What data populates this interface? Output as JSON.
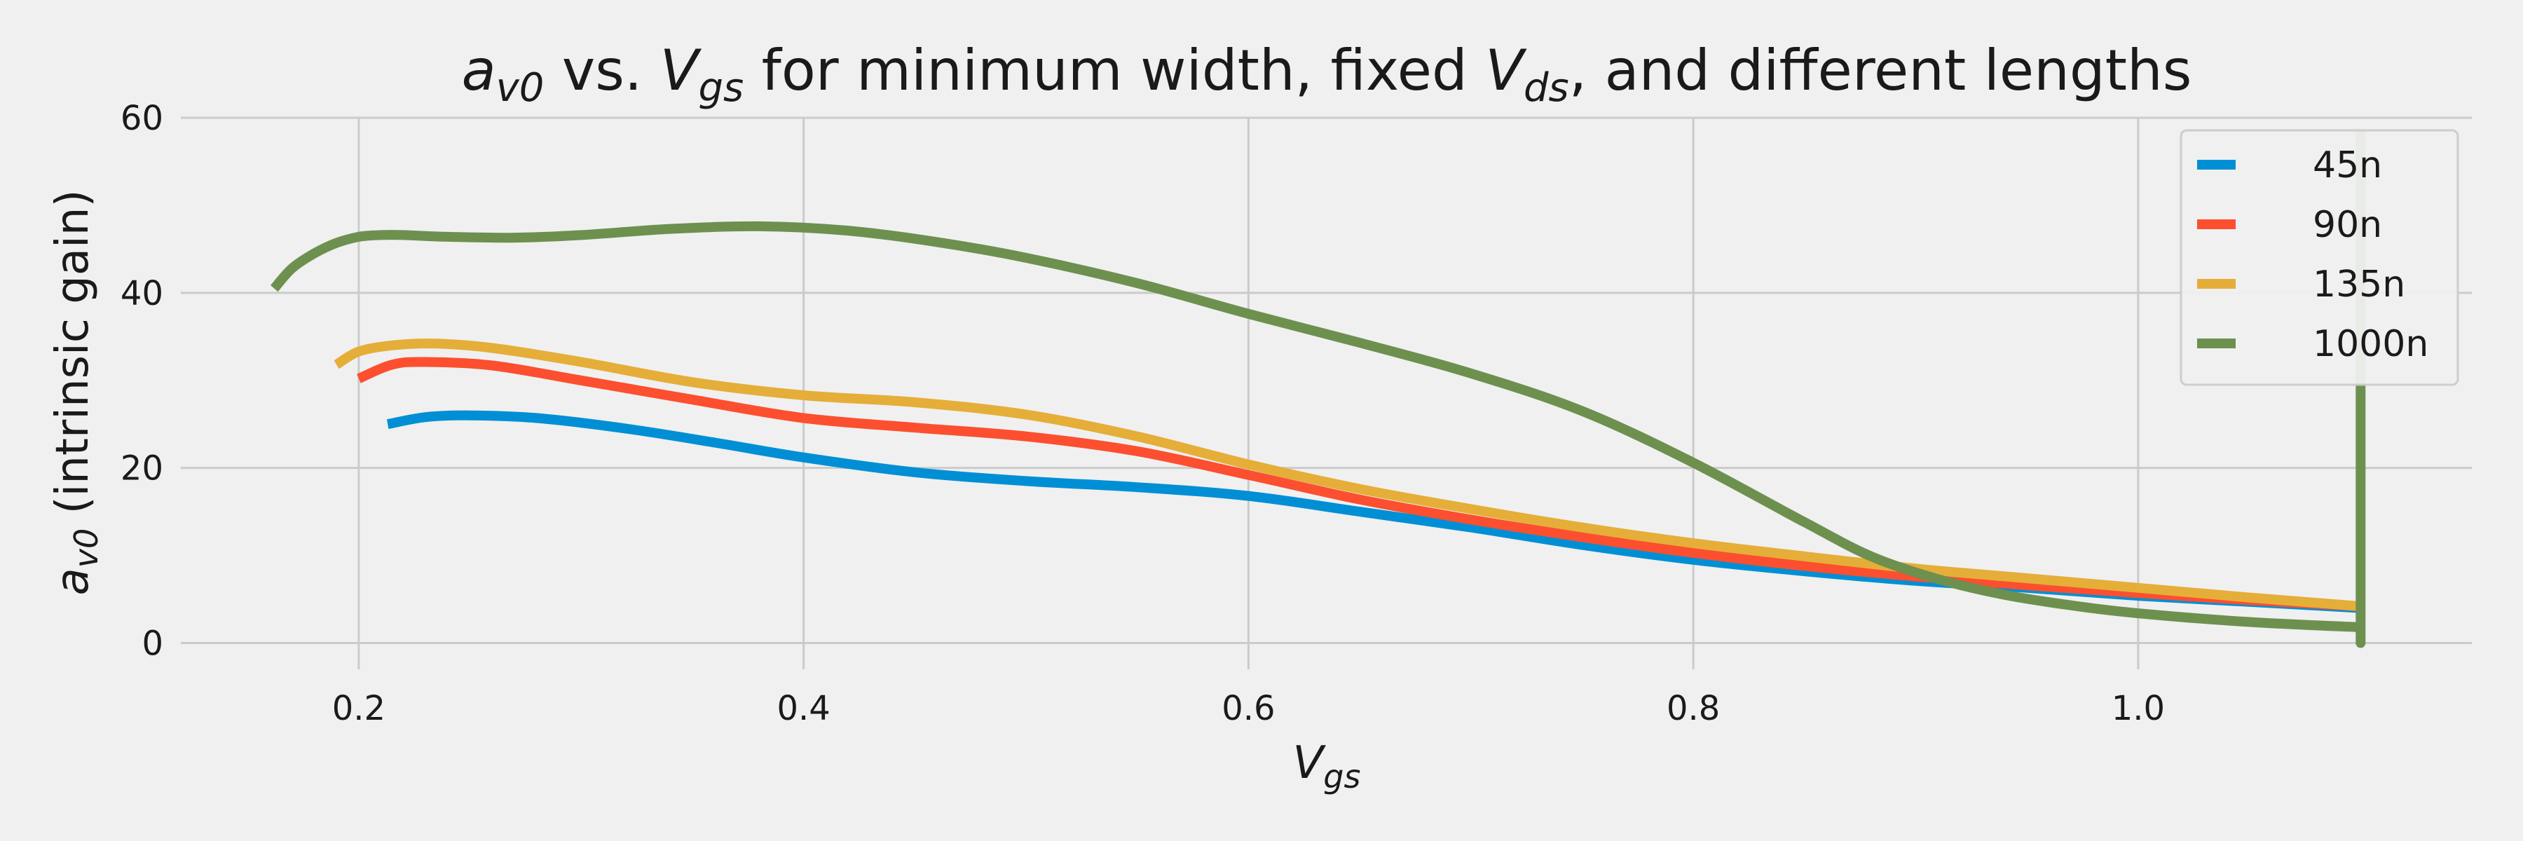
{
  "chart_data": {
    "type": "line",
    "title": {
      "main": "a",
      "main_sub": "v0",
      "mid": " vs. ",
      "var": "V",
      "var_sub": "gs",
      "rest": " for minimum width, fixed ",
      "var2": "V",
      "var2_sub": "ds",
      "tail": ", and different lengths"
    },
    "xlabel": {
      "base": "V",
      "sub": "gs"
    },
    "ylabel": {
      "base": "a",
      "sub": "v0",
      "rest": " (intrinsic gain)"
    },
    "xlim": [
      0.12,
      1.15
    ],
    "ylim": [
      -3,
      60
    ],
    "xticks": [
      0.2,
      0.4,
      0.6,
      0.8,
      1.0
    ],
    "xtick_labels": [
      "0.2",
      "0.4",
      "0.6",
      "0.8",
      "1.0"
    ],
    "yticks": [
      0,
      20,
      40,
      60
    ],
    "ytick_labels": [
      "0",
      "20",
      "40",
      "60"
    ],
    "grid": true,
    "legend_position": "top-right",
    "series": [
      {
        "name": "45n",
        "color": "#008fd5",
        "x": [
          0.213,
          0.23,
          0.25,
          0.28,
          0.32,
          0.36,
          0.4,
          0.45,
          0.5,
          0.55,
          0.6,
          0.65,
          0.7,
          0.75,
          0.8,
          0.85,
          0.9,
          0.95,
          1.0,
          1.05,
          1.1
        ],
        "y": [
          25,
          25.8,
          26,
          25.7,
          24.5,
          22.9,
          21.2,
          19.5,
          18.5,
          17.8,
          16.8,
          15,
          13.2,
          11.2,
          9.5,
          8.2,
          7.1,
          6.3,
          5.4,
          4.7,
          4
        ]
      },
      {
        "name": "90n",
        "color": "#fc4f30",
        "x": [
          0.2,
          0.215,
          0.23,
          0.26,
          0.3,
          0.35,
          0.4,
          0.45,
          0.5,
          0.55,
          0.6,
          0.65,
          0.7,
          0.75,
          0.8,
          0.85,
          0.9,
          0.95,
          1.0,
          1.05,
          1.1
        ],
        "y": [
          30.2,
          31.8,
          32.1,
          31.7,
          30,
          27.8,
          25.7,
          24.6,
          23.6,
          21.9,
          19.2,
          16.4,
          14.1,
          12.1,
          10.3,
          8.8,
          7.6,
          6.6,
          5.7,
          4.9,
          4.2
        ]
      },
      {
        "name": "135n",
        "color": "#e5ae38",
        "x": [
          0.19,
          0.2,
          0.215,
          0.235,
          0.26,
          0.3,
          0.35,
          0.4,
          0.45,
          0.5,
          0.55,
          0.6,
          0.65,
          0.7,
          0.75,
          0.8,
          0.85,
          0.9,
          0.95,
          1.0,
          1.05,
          1.1
        ],
        "y": [
          31.8,
          33.3,
          34,
          34.2,
          33.7,
          32.1,
          29.8,
          28.3,
          27.5,
          26.1,
          23.6,
          20.4,
          17.6,
          15.3,
          13.2,
          11.4,
          9.9,
          8.5,
          7.4,
          6.3,
          5.2,
          4.2
        ]
      },
      {
        "name": "1000n",
        "color": "#6d904f",
        "x": [
          0.162,
          0.17,
          0.18,
          0.19,
          0.2,
          0.21,
          0.22,
          0.24,
          0.27,
          0.3,
          0.34,
          0.38,
          0.42,
          0.46,
          0.5,
          0.55,
          0.6,
          0.65,
          0.7,
          0.75,
          0.8,
          0.85,
          0.88,
          0.91,
          0.94,
          0.97,
          1.0,
          1.05,
          1.1,
          1.1,
          1.1
        ],
        "y": [
          40.5,
          42.8,
          44.5,
          45.7,
          46.4,
          46.6,
          46.6,
          46.4,
          46.3,
          46.6,
          47.3,
          47.6,
          47.1,
          45.8,
          44,
          41.1,
          37.6,
          34.3,
          30.8,
          26.5,
          20.6,
          13.8,
          9.9,
          7.3,
          5.5,
          4.3,
          3.4,
          2.4,
          1.8,
          0,
          58.5
        ]
      }
    ]
  }
}
